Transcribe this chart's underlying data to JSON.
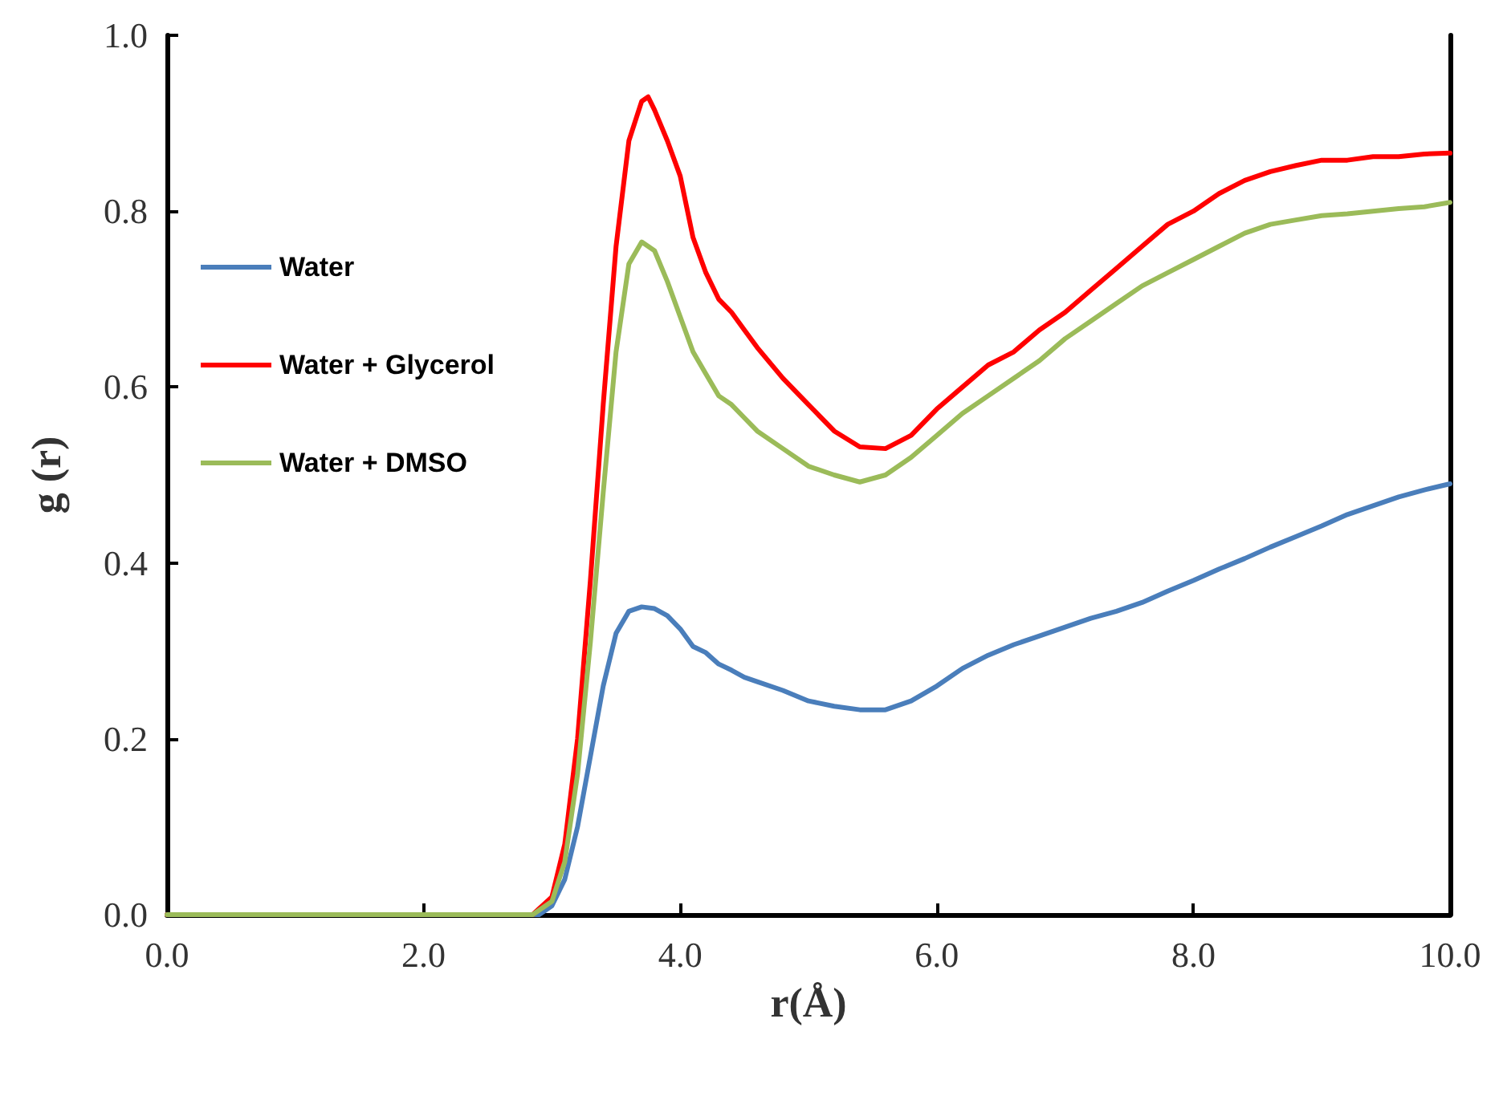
{
  "chart_data": {
    "type": "line",
    "xlabel": "r(Å)",
    "ylabel": "g (r)",
    "xlim": [
      0,
      10
    ],
    "ylim": [
      0,
      1
    ],
    "xticks": [
      {
        "value": 0,
        "label": "0.0"
      },
      {
        "value": 2,
        "label": "2.0"
      },
      {
        "value": 4,
        "label": "4.0"
      },
      {
        "value": 6,
        "label": "6.0"
      },
      {
        "value": 8,
        "label": "8.0"
      },
      {
        "value": 10,
        "label": "10.0"
      }
    ],
    "yticks": [
      {
        "value": 0,
        "label": "0.0"
      },
      {
        "value": 0.2,
        "label": "0.2"
      },
      {
        "value": 0.4,
        "label": "0.4"
      },
      {
        "value": 0.6,
        "label": "0.6"
      },
      {
        "value": 0.8,
        "label": "0.8"
      },
      {
        "value": 1,
        "label": "1.0"
      }
    ],
    "grid": false,
    "legend": "top left",
    "marker": "none",
    "line_style": "solid",
    "series": [
      {
        "name": "Water",
        "color": "#4a7ebb",
        "x": [
          0,
          2.9,
          3.0,
          3.1,
          3.2,
          3.3,
          3.4,
          3.5,
          3.6,
          3.7,
          3.8,
          3.9,
          4.0,
          4.1,
          4.2,
          4.3,
          4.4,
          4.5,
          4.6,
          4.8,
          5.0,
          5.2,
          5.4,
          5.6,
          5.8,
          6.0,
          6.2,
          6.4,
          6.6,
          6.8,
          7.0,
          7.2,
          7.4,
          7.6,
          7.8,
          8.0,
          8.2,
          8.4,
          8.6,
          8.8,
          9.0,
          9.2,
          9.4,
          9.6,
          9.8,
          10
        ],
        "values": [
          0,
          0,
          0.01,
          0.04,
          0.1,
          0.18,
          0.26,
          0.32,
          0.345,
          0.35,
          0.348,
          0.34,
          0.325,
          0.305,
          0.298,
          0.285,
          0.278,
          0.27,
          0.265,
          0.255,
          0.243,
          0.237,
          0.233,
          0.233,
          0.243,
          0.26,
          0.28,
          0.295,
          0.307,
          0.317,
          0.327,
          0.337,
          0.345,
          0.355,
          0.368,
          0.38,
          0.393,
          0.405,
          0.418,
          0.43,
          0.442,
          0.455,
          0.465,
          0.475,
          0.483,
          0.49
        ]
      },
      {
        "name": "Water + Glycerol",
        "color": "#ff0000",
        "x": [
          0,
          2.85,
          3.0,
          3.1,
          3.2,
          3.3,
          3.4,
          3.5,
          3.6,
          3.7,
          3.75,
          3.8,
          3.9,
          4.0,
          4.1,
          4.2,
          4.3,
          4.4,
          4.5,
          4.6,
          4.8,
          5.0,
          5.2,
          5.4,
          5.6,
          5.8,
          6.0,
          6.2,
          6.4,
          6.6,
          6.8,
          7.0,
          7.2,
          7.4,
          7.6,
          7.8,
          8.0,
          8.2,
          8.4,
          8.6,
          8.8,
          9.0,
          9.2,
          9.4,
          9.6,
          9.8,
          10
        ],
        "values": [
          0,
          0,
          0.02,
          0.08,
          0.2,
          0.38,
          0.58,
          0.76,
          0.88,
          0.925,
          0.93,
          0.915,
          0.88,
          0.84,
          0.77,
          0.73,
          0.7,
          0.685,
          0.665,
          0.645,
          0.61,
          0.58,
          0.55,
          0.532,
          0.53,
          0.545,
          0.575,
          0.6,
          0.625,
          0.64,
          0.665,
          0.685,
          0.71,
          0.735,
          0.76,
          0.785,
          0.8,
          0.82,
          0.835,
          0.845,
          0.852,
          0.858,
          0.858,
          0.862,
          0.862,
          0.865,
          0.866
        ]
      },
      {
        "name": "Water + DMSO",
        "color": "#9bbb59",
        "x": [
          0,
          2.85,
          3.0,
          3.1,
          3.2,
          3.3,
          3.4,
          3.5,
          3.6,
          3.7,
          3.8,
          3.9,
          4.0,
          4.1,
          4.2,
          4.3,
          4.4,
          4.5,
          4.6,
          4.8,
          5.0,
          5.2,
          5.4,
          5.6,
          5.8,
          6.0,
          6.2,
          6.4,
          6.6,
          6.8,
          7.0,
          7.2,
          7.4,
          7.6,
          7.8,
          8.0,
          8.2,
          8.4,
          8.6,
          8.8,
          9.0,
          9.2,
          9.4,
          9.6,
          9.8,
          10
        ],
        "values": [
          0,
          0,
          0.015,
          0.06,
          0.16,
          0.31,
          0.48,
          0.64,
          0.74,
          0.765,
          0.755,
          0.72,
          0.68,
          0.64,
          0.615,
          0.59,
          0.58,
          0.565,
          0.55,
          0.53,
          0.51,
          0.5,
          0.492,
          0.5,
          0.52,
          0.545,
          0.57,
          0.59,
          0.61,
          0.63,
          0.655,
          0.675,
          0.695,
          0.715,
          0.73,
          0.745,
          0.76,
          0.775,
          0.785,
          0.79,
          0.795,
          0.797,
          0.8,
          0.803,
          0.805,
          0.81
        ]
      }
    ]
  }
}
